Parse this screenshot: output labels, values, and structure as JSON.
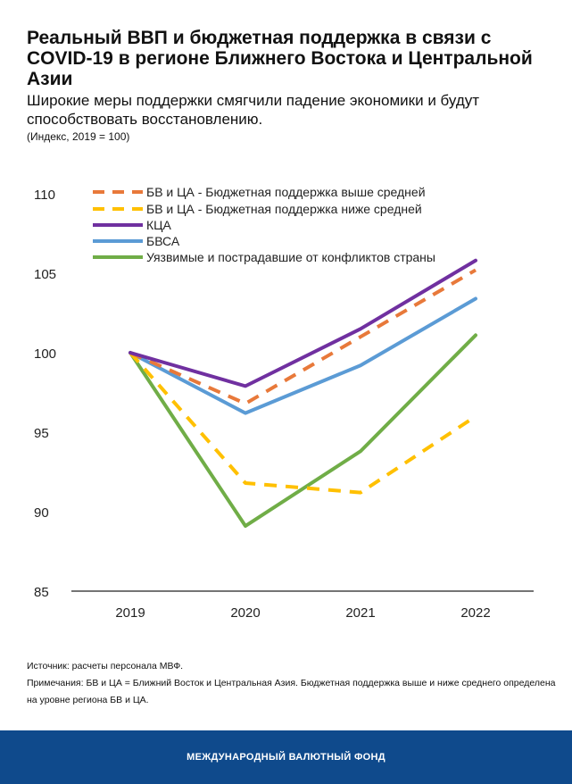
{
  "header": {
    "title": "Реальный ВВП и бюджетная поддержка в связи с COVID-19 в регионе Ближнего Востока и Центральной Азии",
    "subtitle": "Широкие меры поддержки смягчили падение экономики и будут способствовать восстановлению.",
    "unit": "(Индекс, 2019 = 100)"
  },
  "chart_data": {
    "type": "line",
    "x": [
      "2019",
      "2020",
      "2021",
      "2022"
    ],
    "ylim": [
      85,
      110
    ],
    "yticks": [
      "85",
      "90",
      "95",
      "100",
      "105",
      "110"
    ],
    "legend_position": "top",
    "series": [
      {
        "name": "БВ и ЦА - Бюджетная поддержка выше средней",
        "values": [
          100,
          96.8,
          101.0,
          105.2
        ],
        "color": "#e8793a",
        "dash": true
      },
      {
        "name": "БВ и ЦА - Бюджетная поддержка ниже средней",
        "values": [
          100,
          91.8,
          91.2,
          96.0
        ],
        "color": "#ffc000",
        "dash": true
      },
      {
        "name": "КЦА",
        "values": [
          100,
          97.9,
          101.5,
          105.8
        ],
        "color": "#7030a0",
        "dash": false
      },
      {
        "name": "БВСА",
        "values": [
          100,
          96.2,
          99.2,
          103.4
        ],
        "color": "#5b9bd5",
        "dash": false
      },
      {
        "name": "Уязвимые и пострадавшие от конфликтов страны",
        "values": [
          100,
          89.1,
          93.8,
          101.1
        ],
        "color": "#70ad47",
        "dash": false
      }
    ]
  },
  "notes": {
    "source": "Источник: расчеты персонала МВФ.",
    "note": "Примечания: БВ и ЦА = Ближний Восток и Центральная Азия. Бюджетная поддержка выше и ниже среднего определена на уровне региона БВ и ЦА."
  },
  "footer": {
    "label": "МЕЖДУНАРОДНЫЙ ВАЛЮТНЫЙ ФОНД"
  }
}
